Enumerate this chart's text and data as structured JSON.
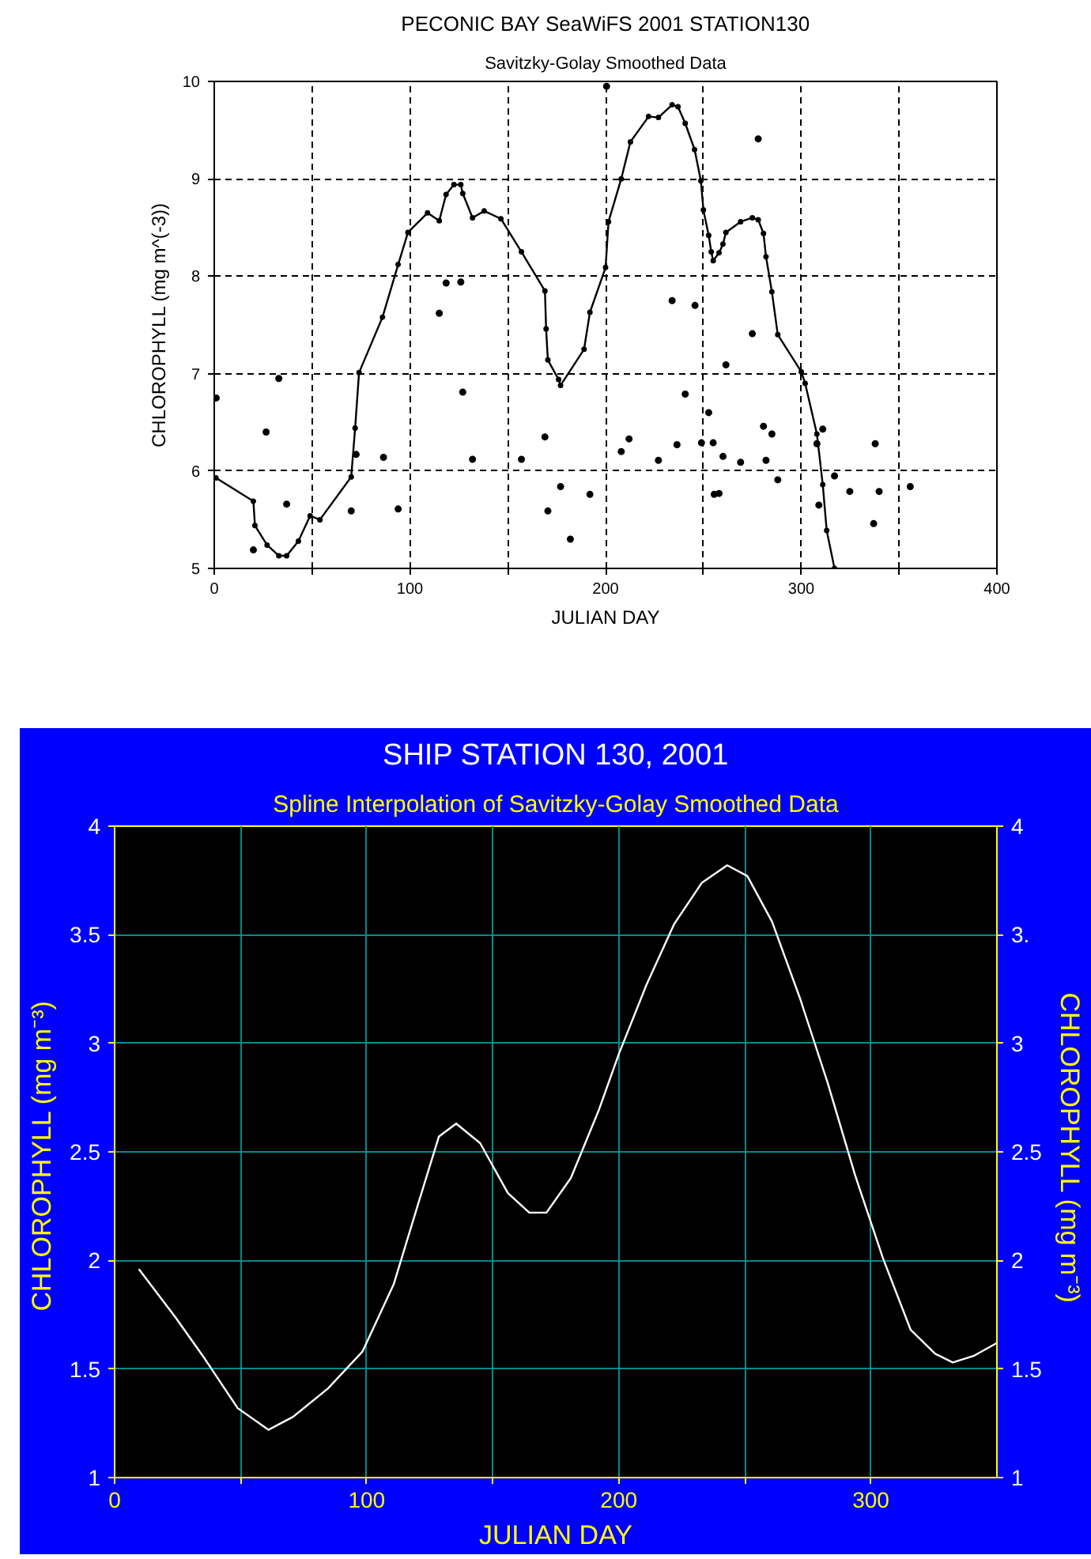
{
  "chart_data": [
    {
      "type": "line",
      "title": "PECONIC BAY SeaWiFS 2001 STATION130",
      "subtitle": "Savitzky-Golay Smoothed Data",
      "xlabel": "JULIAN DAY",
      "ylabel": "CHLOROPHYLL (mg m^(-3))",
      "xlim": [
        0,
        400
      ],
      "xticks": [
        0,
        {
          "value": 50,
          "label": null
        },
        100,
        {
          "value": 150,
          "label": null
        },
        200,
        {
          "value": 250,
          "label": null
        },
        300,
        {
          "value": 350,
          "label": null
        },
        400
      ],
      "ylim": [
        5,
        10
      ],
      "yticks": [
        5,
        6,
        7,
        8,
        9,
        10
      ],
      "grid": true,
      "series": [
        {
          "color": "#000000",
          "marker": "circle",
          "x": [
            0.9,
            20,
            20.8,
            27,
            33,
            37,
            43,
            49,
            54,
            70,
            72,
            74,
            86,
            94,
            99,
            109,
            115,
            118.5,
            122.5,
            126,
            127,
            132,
            138,
            146.5,
            157,
            169,
            169.6,
            170.5,
            176,
            177,
            189,
            192,
            200,
            201.5,
            208,
            212.7,
            222,
            227,
            234,
            237,
            240.7,
            245.5,
            248.7,
            250,
            252.7,
            254,
            255,
            258,
            260,
            261.5,
            269,
            275,
            278,
            280.7,
            282,
            285,
            288,
            300,
            302,
            308,
            311,
            313,
            317
          ],
          "values": [
            5.93,
            5.69,
            5.44,
            5.24,
            5.13,
            5.13,
            5.28,
            5.54,
            5.5,
            5.94,
            6.44,
            7.01,
            7.58,
            8.12,
            8.45,
            8.65,
            8.57,
            8.84,
            8.94,
            8.94,
            8.85,
            8.6,
            8.67,
            8.59,
            8.25,
            7.85,
            7.46,
            7.14,
            6.94,
            6.88,
            7.25,
            7.63,
            8.09,
            8.56,
            9.0,
            9.38,
            9.64,
            9.63,
            9.76,
            9.74,
            9.57,
            9.3,
            8.98,
            8.68,
            8.42,
            8.25,
            8.16,
            8.24,
            8.33,
            8.45,
            8.56,
            8.6,
            8.58,
            8.44,
            8.2,
            7.84,
            7.4,
            7.02,
            6.9,
            6.38,
            5.86,
            5.39,
            5.0
          ]
        },
        {
          "type": "scatter",
          "color": "#000000",
          "marker": "circle",
          "x": [
            1,
            33,
            26.5,
            20,
            37,
            70,
            72.5,
            86.5,
            94,
            115,
            118.5,
            126,
            127,
            132,
            157,
            169,
            170.5,
            177,
            182,
            192,
            200.5,
            208,
            212,
            227,
            234,
            236.5,
            240.7,
            245.7,
            249,
            252.7,
            255,
            255.5,
            258,
            260,
            261.5,
            269,
            275,
            278,
            280.7,
            282,
            285,
            288,
            308,
            309,
            311,
            317,
            324.8,
            337,
            337.8,
            339.8,
            355.7
          ],
          "values": [
            6.75,
            6.95,
            6.4,
            5.19,
            5.66,
            5.59,
            6.17,
            6.14,
            5.61,
            7.62,
            7.93,
            7.94,
            6.81,
            6.12,
            6.12,
            6.35,
            5.59,
            5.84,
            5.3,
            5.76,
            9.95,
            6.2,
            6.33,
            6.11,
            7.75,
            6.27,
            6.79,
            7.7,
            6.29,
            6.6,
            6.29,
            5.76,
            5.77,
            6.15,
            7.09,
            6.09,
            7.41,
            9.41,
            6.46,
            6.11,
            6.38,
            5.91,
            6.28,
            5.65,
            6.43,
            5.95,
            5.79,
            5.46,
            6.28,
            5.79,
            5.84
          ]
        }
      ]
    },
    {
      "type": "line",
      "title": "SHIP STATION 130, 2001",
      "subtitle": "Spline Interpolation of Savitzky-Golay Smoothed Data",
      "xlabel": "JULIAN DAY",
      "ylabel": "CHLOROPHYLL  (mg m⁻³)",
      "y2label": "CHLOROPHYLL  (mg m⁻³)",
      "xlim": [
        0,
        350
      ],
      "xticks": [
        0,
        {
          "value": 50,
          "label": null
        },
        100,
        {
          "value": 150,
          "label": null
        },
        200,
        {
          "value": 250,
          "label": null
        },
        300
      ],
      "ylim": [
        1,
        4
      ],
      "yticks": [
        1,
        1.5,
        2,
        2.5,
        3,
        3.5,
        4
      ],
      "y2lim": [
        1,
        4
      ],
      "y2ticks": [
        1,
        1.5,
        2,
        2.5,
        3,
        {
          "value": 3.5,
          "label": "3."
        },
        4
      ],
      "grid": true,
      "series": [
        {
          "color": "#ffffff",
          "marker": "none",
          "x": [
            9.6,
            24,
            35,
            48.8,
            61,
            70.8,
            84.6,
            98.3,
            110.7,
            120.4,
            128.6,
            135.5,
            145,
            156,
            164.5,
            171.3,
            181,
            192,
            200,
            211,
            222,
            233,
            243,
            251,
            260.8,
            271.8,
            282.8,
            293.8,
            304.8,
            315.8,
            325.5,
            332.5,
            340.7,
            350
          ],
          "values": [
            1.96,
            1.74,
            1.56,
            1.32,
            1.22,
            1.28,
            1.41,
            1.58,
            1.89,
            2.26,
            2.57,
            2.63,
            2.54,
            2.31,
            2.22,
            2.22,
            2.38,
            2.69,
            2.95,
            3.27,
            3.55,
            3.74,
            3.82,
            3.77,
            3.56,
            3.21,
            2.82,
            2.39,
            2.01,
            1.68,
            1.57,
            1.53,
            1.56,
            1.62
          ]
        }
      ]
    }
  ]
}
